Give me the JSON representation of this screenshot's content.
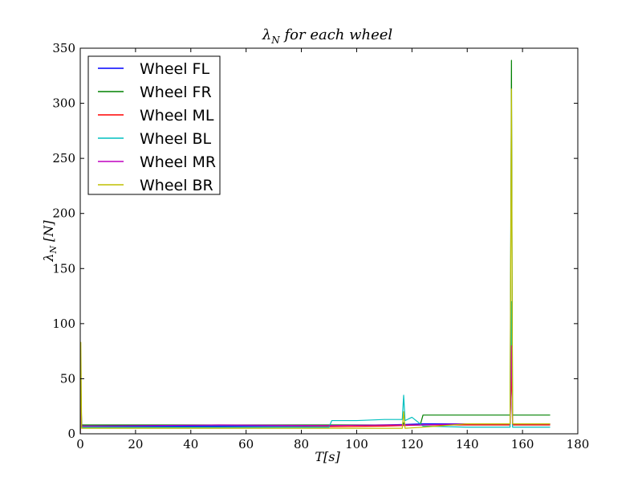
{
  "chart_data": {
    "type": "line",
    "title_main": "λ",
    "title_sub": "N",
    "title_rest": " for each wheel",
    "xlabel_main": "T",
    "xlabel_unit": "[s]",
    "ylabel_main": "λ",
    "ylabel_sub": "N",
    "ylabel_unit": " [N]",
    "xlim": [
      0,
      180
    ],
    "ylim": [
      0,
      350
    ],
    "xticks": [
      "0",
      "20",
      "40",
      "60",
      "80",
      "100",
      "120",
      "140",
      "160",
      "180"
    ],
    "yticks": [
      "0",
      "50",
      "100",
      "150",
      "200",
      "250",
      "300",
      "350"
    ],
    "grid": false,
    "legend_position": "top-left",
    "series": [
      {
        "name": "Wheel FL",
        "color": "#0000ff",
        "x": [
          0,
          0.2,
          0.5,
          50,
          90,
          110,
          124,
          140,
          155.5,
          156,
          156.4,
          170
        ],
        "y": [
          0,
          40,
          7,
          7,
          7.5,
          8,
          9,
          9,
          9,
          65,
          9,
          9
        ]
      },
      {
        "name": "Wheel FR",
        "color": "#008000",
        "x": [
          0,
          0.2,
          0.5,
          50,
          90,
          110,
          116.5,
          117,
          117.5,
          123,
          124,
          140,
          155.5,
          156,
          156.4,
          170
        ],
        "y": [
          0,
          45,
          8,
          8,
          8,
          8,
          8,
          10,
          8,
          8,
          17,
          17,
          17,
          339,
          17,
          17
        ]
      },
      {
        "name": "Wheel ML",
        "color": "#ff0000",
        "x": [
          0,
          0.2,
          0.5,
          50,
          90,
          110,
          124,
          140,
          155.5,
          156,
          156.4,
          170
        ],
        "y": [
          0,
          20,
          6,
          6,
          6.5,
          7,
          8,
          8,
          8,
          60,
          8,
          8
        ]
      },
      {
        "name": "Wheel BL",
        "color": "#00bfbf",
        "x": [
          0,
          0.2,
          0.5,
          50,
          90,
          91,
          100,
          110,
          116.5,
          117,
          117.5,
          120,
          124,
          140,
          155.5,
          156,
          156.4,
          170
        ],
        "y": [
          0,
          30,
          6,
          6,
          6,
          12,
          12,
          13,
          13,
          35,
          12,
          15,
          7,
          6,
          6,
          120,
          6,
          6
        ]
      },
      {
        "name": "Wheel MR",
        "color": "#bf00bf",
        "x": [
          0,
          0.2,
          0.5,
          50,
          90,
          110,
          124,
          140,
          155.5,
          156,
          156.4,
          170
        ],
        "y": [
          0,
          25,
          7,
          8,
          7.5,
          8,
          8,
          9,
          9,
          80,
          9,
          9
        ]
      },
      {
        "name": "Wheel BR",
        "color": "#bfbf00",
        "x": [
          0,
          0.2,
          0.5,
          50,
          90,
          110,
          116.5,
          117,
          117.5,
          124,
          140,
          155.5,
          156,
          156.4,
          170
        ],
        "y": [
          0,
          83,
          5,
          5,
          5,
          5,
          5,
          20,
          5,
          6,
          9,
          9,
          313,
          9,
          9
        ]
      }
    ]
  }
}
